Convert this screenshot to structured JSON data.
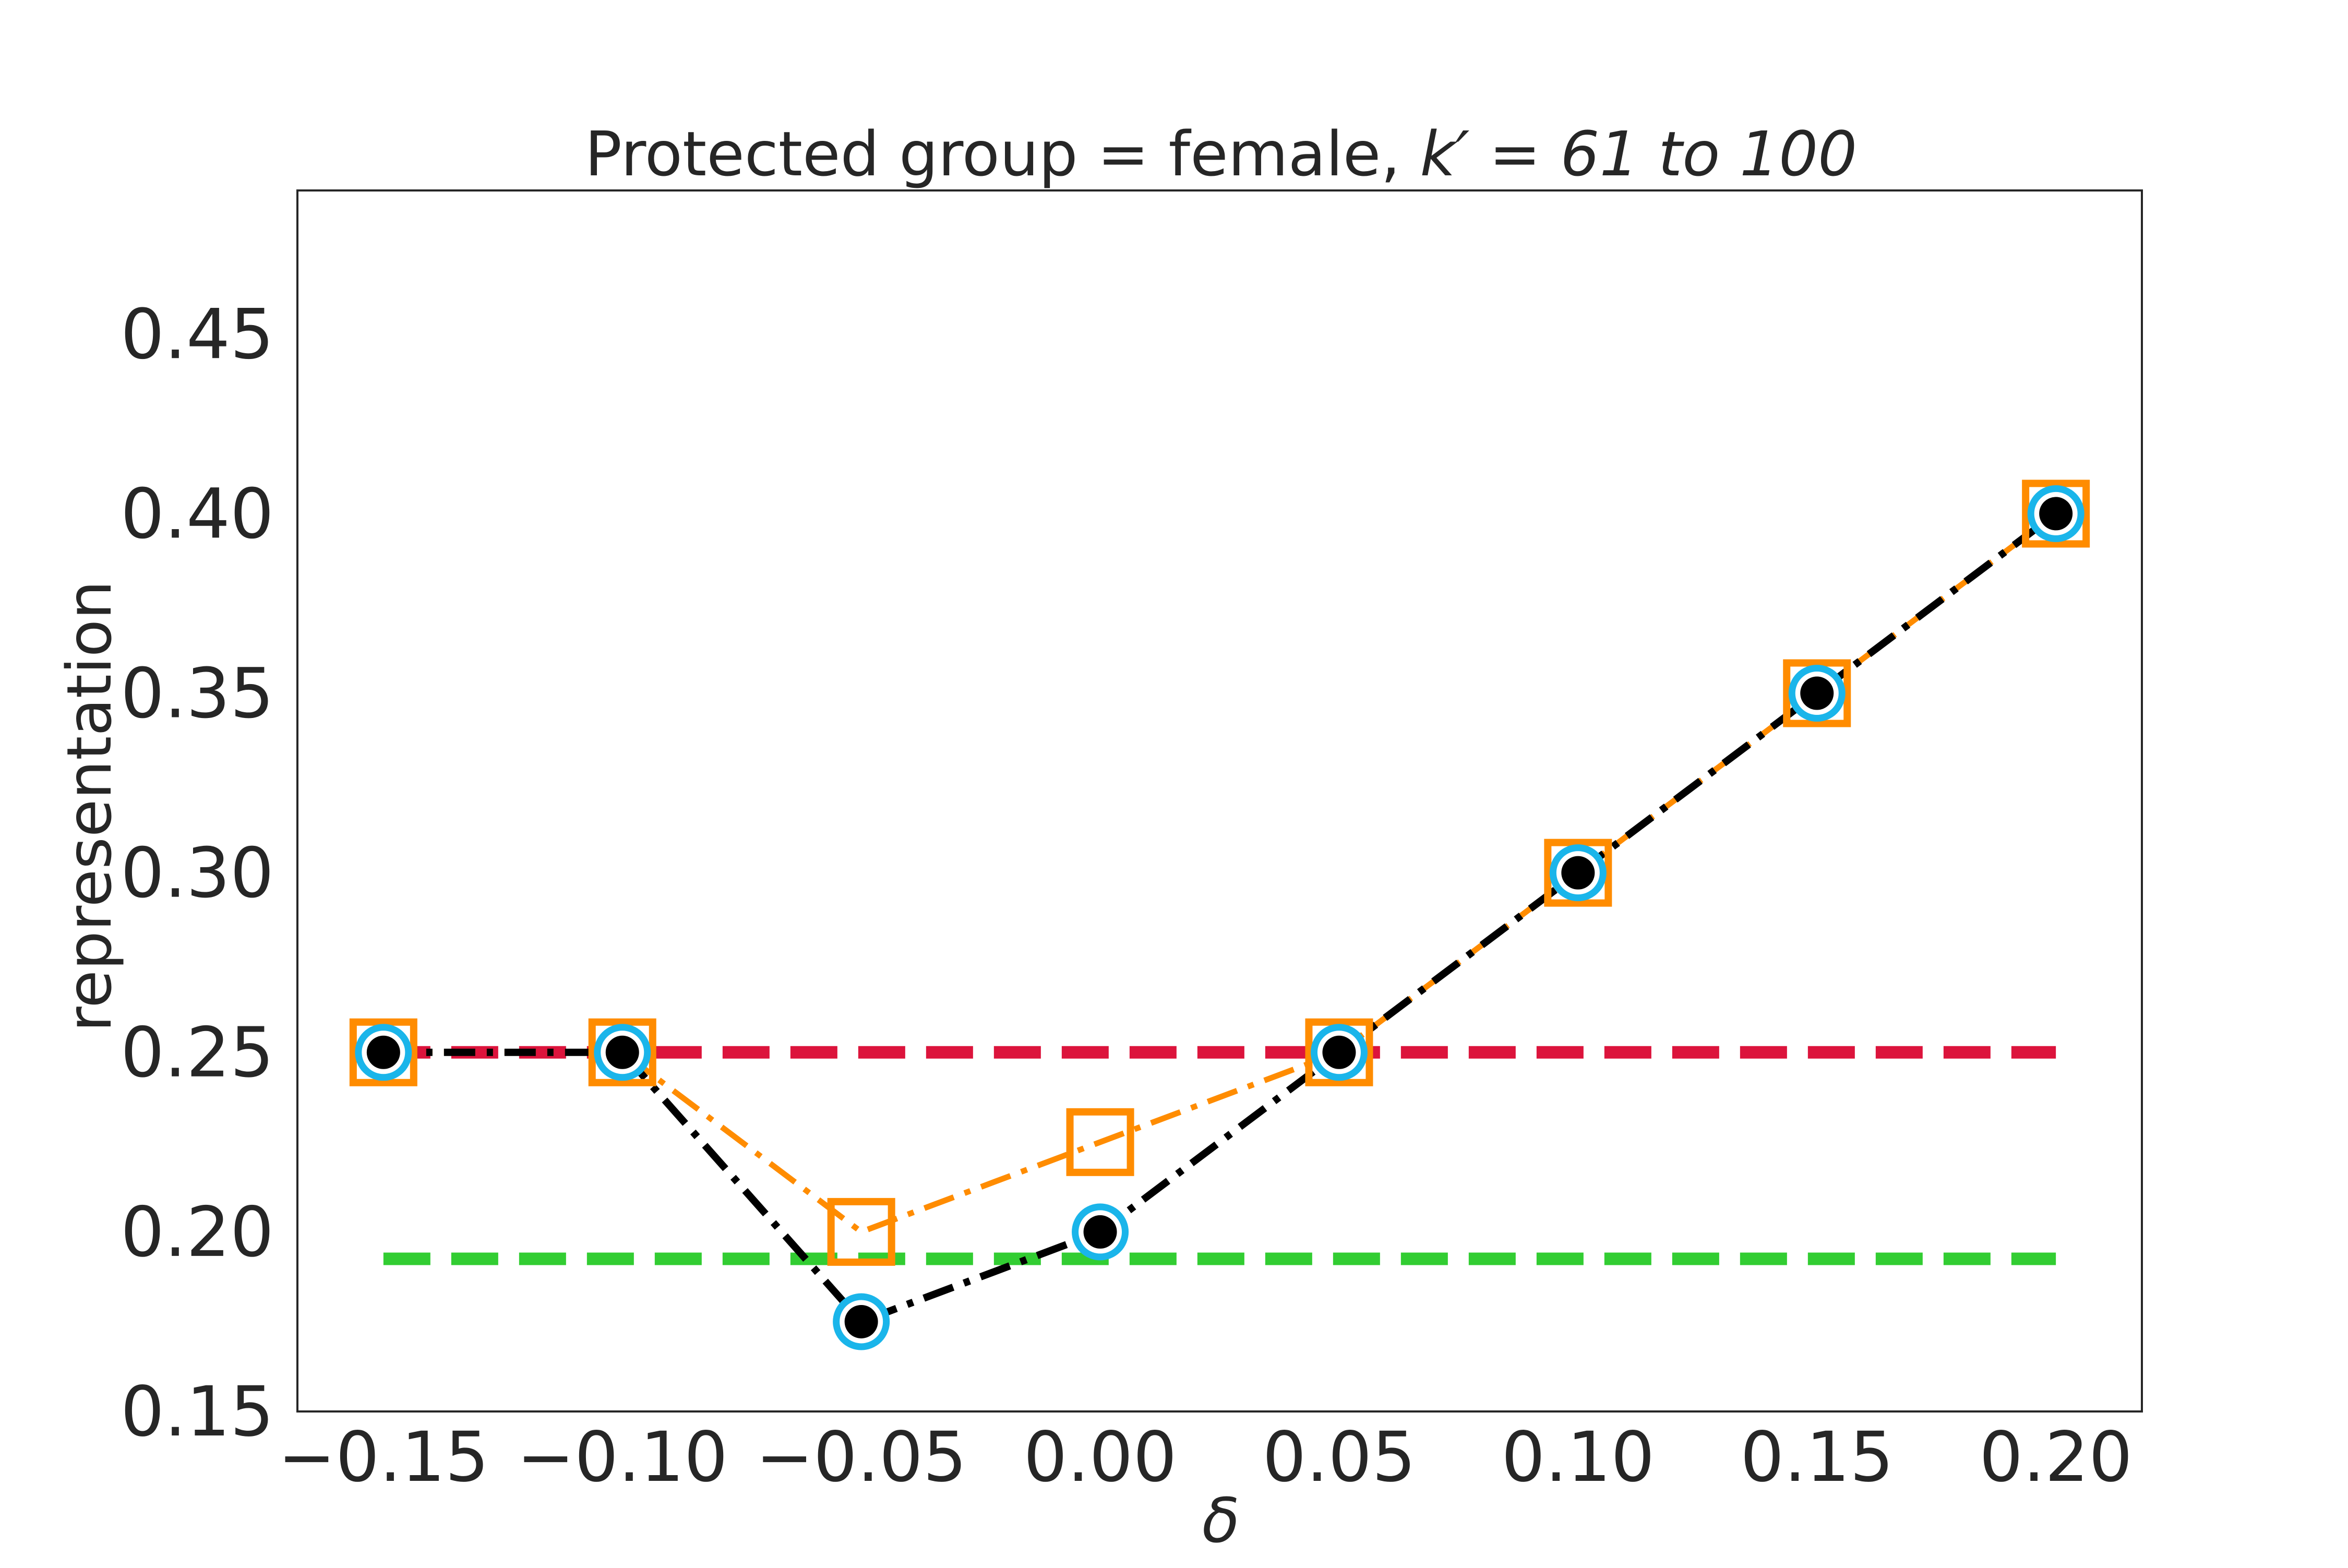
{
  "chart_data": {
    "type": "line",
    "title_main": "Protected group = female, ",
    "title_math": "k′ = 61 to 100",
    "xlabel": "δ",
    "ylabel": "representation",
    "xlim": [
      -0.168,
      0.218
    ],
    "ylim": [
      0.15,
      0.49
    ],
    "x_ticks": [
      {
        "value": -0.15,
        "label": "−0.15"
      },
      {
        "value": -0.1,
        "label": "−0.10"
      },
      {
        "value": -0.05,
        "label": "−0.05"
      },
      {
        "value": 0.0,
        "label": "0.00"
      },
      {
        "value": 0.05,
        "label": "0.05"
      },
      {
        "value": 0.1,
        "label": "0.10"
      },
      {
        "value": 0.15,
        "label": "0.15"
      },
      {
        "value": 0.2,
        "label": "0.20"
      }
    ],
    "y_ticks": [
      {
        "value": 0.15,
        "label": "0.15"
      },
      {
        "value": 0.2,
        "label": "0.20"
      },
      {
        "value": 0.25,
        "label": "0.25"
      },
      {
        "value": 0.3,
        "label": "0.30"
      },
      {
        "value": 0.35,
        "label": "0.35"
      },
      {
        "value": 0.4,
        "label": "0.40"
      },
      {
        "value": 0.45,
        "label": "0.45"
      }
    ],
    "grid": false,
    "reference_lines": [
      {
        "y": 0.25,
        "x_range": [
          -0.15,
          0.2
        ],
        "color": "#dc143c",
        "style": "dashed"
      },
      {
        "y": 0.1925,
        "x_range": [
          -0.15,
          0.2
        ],
        "color": "#32cd32",
        "style": "dashed"
      }
    ],
    "series": [
      {
        "marker": "square",
        "color": "#ff8c00",
        "line_style": "dashdot",
        "x": [
          -0.15,
          -0.1,
          -0.05,
          0.0,
          0.05,
          0.1,
          0.15,
          0.2
        ],
        "y": [
          0.25,
          0.25,
          0.2,
          0.225,
          0.25,
          0.3,
          0.35,
          0.4
        ]
      },
      {
        "marker": "ring",
        "color": "#1ab5ea",
        "line_style": "none",
        "x": [
          -0.15,
          -0.1,
          -0.05,
          0.0,
          0.05,
          0.1,
          0.15,
          0.2
        ],
        "y": [
          0.25,
          0.25,
          0.175,
          0.2,
          0.25,
          0.3,
          0.35,
          0.4
        ]
      },
      {
        "marker": "dot",
        "color": "#000000",
        "line_style": "dashdot",
        "x": [
          -0.15,
          -0.1,
          -0.05,
          0.0,
          0.05,
          0.1,
          0.15,
          0.2
        ],
        "y": [
          0.25,
          0.25,
          0.175,
          0.2,
          0.25,
          0.3,
          0.35,
          0.4
        ]
      }
    ]
  }
}
